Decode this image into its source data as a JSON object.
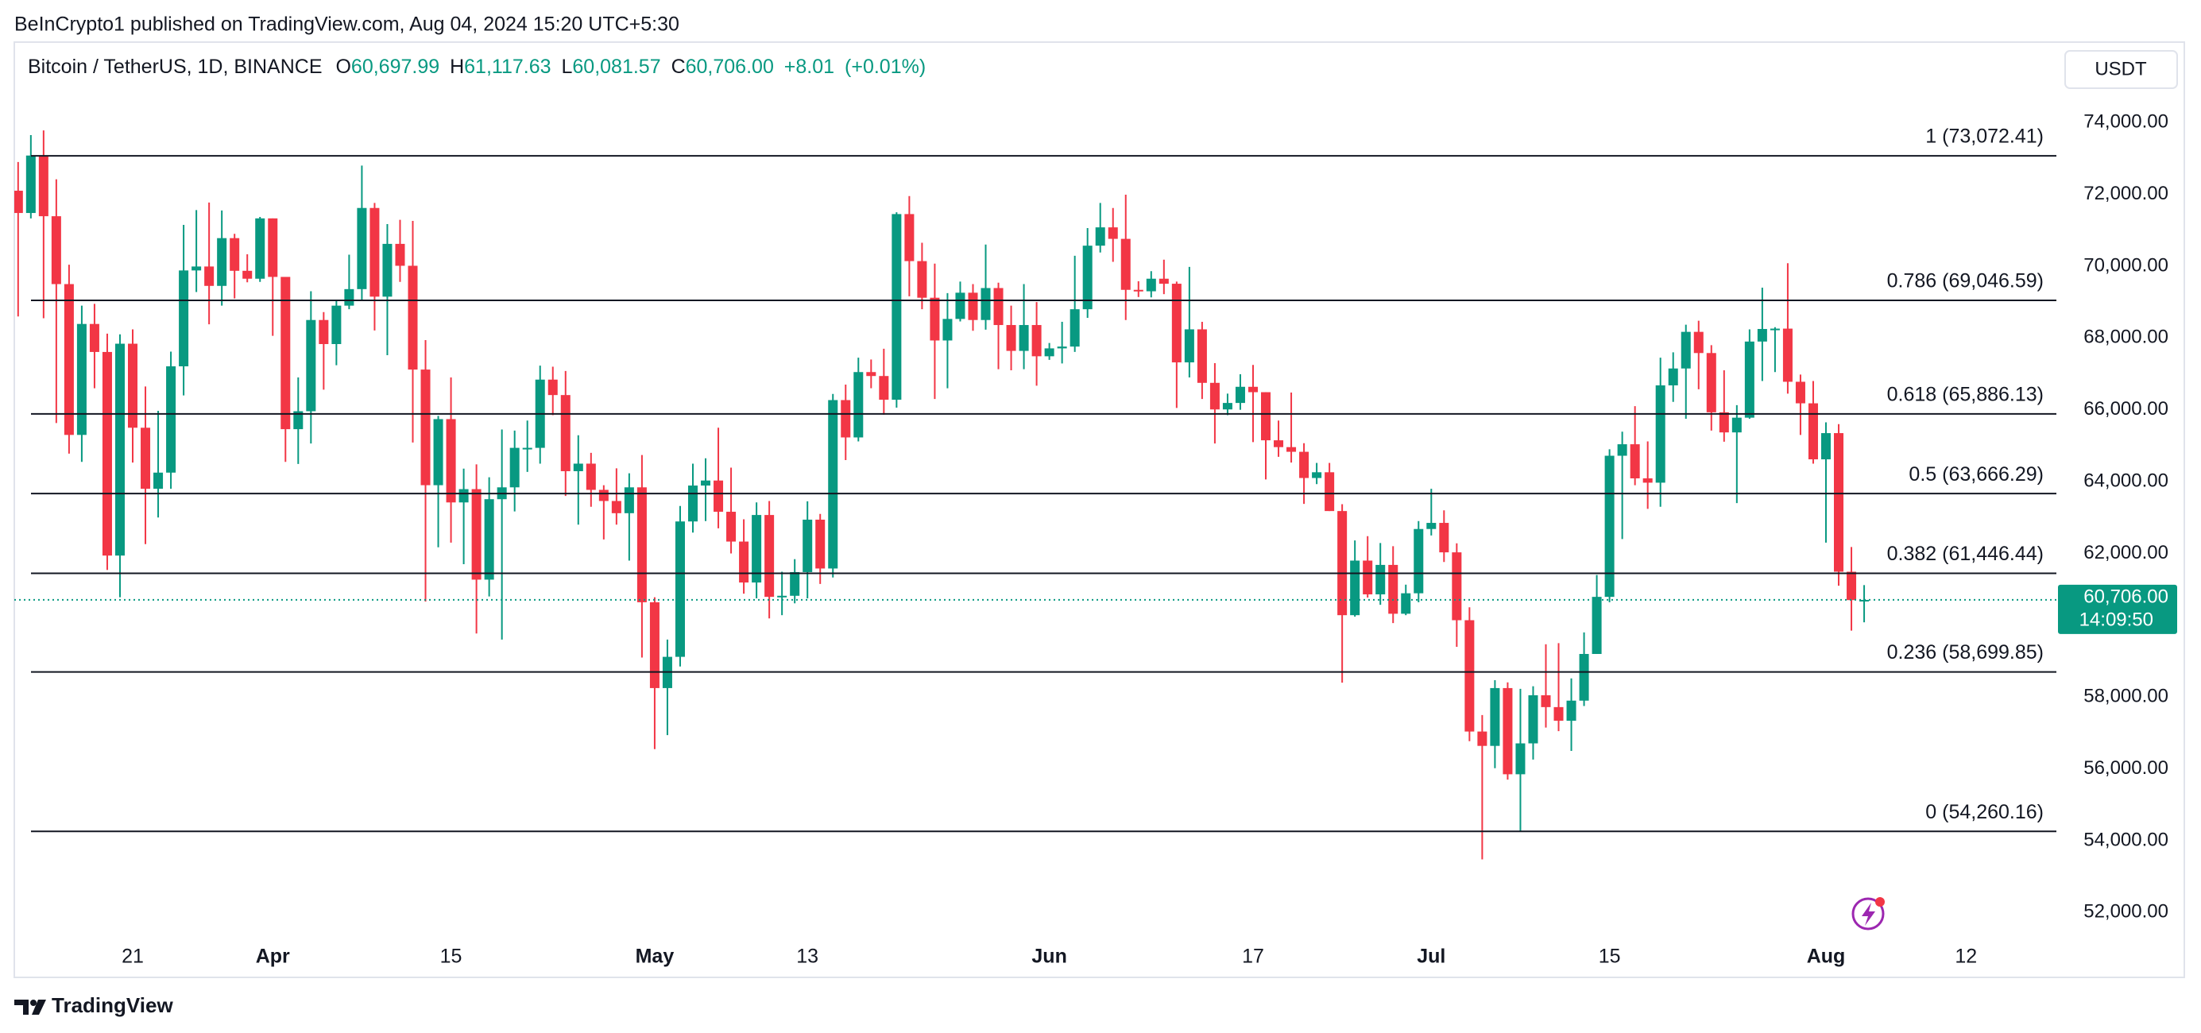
{
  "header": {
    "attribution": "BeInCrypto1 published on TradingView.com, Aug 04, 2024 15:20 UTC+5:30"
  },
  "toolbar": {
    "currency": "USDT"
  },
  "footer": {
    "brand": "TradingView"
  },
  "chart_data": {
    "type": "candlestick",
    "title": "Bitcoin / TetherUS, 1D, BINANCE",
    "legend": {
      "labels": [
        "O",
        "H",
        "L",
        "C"
      ],
      "values": [
        60697.99,
        61117.63,
        60081.57,
        60706
      ],
      "value_labels": [
        "60,697.99",
        "61,117.63",
        "60,081.57",
        "60,706.00"
      ],
      "change": {
        "value": 8.01,
        "label": "+8.01"
      },
      "change_pct": {
        "value": 0.01,
        "label": "(+0.01%)"
      }
    },
    "up_color": "#089981",
    "down_color": "#f23645",
    "open": [
      72100,
      71480,
      73080,
      71390,
      69500,
      65300,
      68390,
      67610,
      61940,
      67840,
      65500,
      63800,
      64250,
      67210,
      69880,
      69990,
      69450,
      70780,
      69870,
      69650,
      71330,
      69700,
      65460,
      65960,
      68500,
      67830,
      68900,
      69360,
      71620,
      69150,
      70620,
      70010,
      67120,
      63900,
      65740,
      63420,
      63790,
      61270,
      63510,
      63840,
      64940,
      64940,
      66840,
      66410,
      64290,
      64500,
      63770,
      63460,
      63120,
      63840,
      60640,
      58250,
      59120,
      62890,
      63890,
      64030,
      63160,
      62330,
      61190,
      63070,
      60790,
      60820,
      61480,
      62940,
      61580,
      66270,
      65230,
      67050,
      66940,
      66280,
      71450,
      70140,
      69120,
      67930,
      68530,
      69260,
      68500,
      69390,
      68360,
      67640,
      68360,
      67490,
      67710,
      67760,
      68800,
      70570,
      71080,
      70760,
      69340,
      69300,
      69650,
      69510,
      67320,
      68240,
      66750,
      66010,
      66190,
      66640,
      66490,
      65150,
      64960,
      64830,
      64100,
      64260,
      63180,
      60280,
      61800,
      60860,
      61680,
      60320,
      60890,
      62680,
      62850,
      62030,
      60140,
      57040,
      56640,
      58250,
      55850,
      56710,
      58050,
      57720,
      57340,
      57900,
      59200,
      60790,
      64720,
      65040,
      64090,
      63970,
      66680,
      67150,
      68170,
      67580,
      65930,
      65370,
      65780,
      67900,
      68250,
      68260,
      66780,
      66180,
      64620,
      65350,
      61490,
      60697.99
    ],
    "high": [
      72900,
      73650,
      73780,
      72420,
      70040,
      68900,
      68950,
      68120,
      68100,
      68240,
      66650,
      65970,
      67620,
      71150,
      71560,
      71770,
      71550,
      70900,
      70330,
      71370,
      71330,
      69700,
      66900,
      69300,
      68720,
      69030,
      70320,
      72800,
      71760,
      71170,
      71290,
      71260,
      67940,
      65830,
      66900,
      64360,
      64480,
      64120,
      65450,
      65420,
      65700,
      67230,
      67200,
      67080,
      65290,
      64800,
      63900,
      64370,
      64230,
      64740,
      60780,
      59600,
      63320,
      64500,
      64650,
      65500,
      64390,
      62950,
      63420,
      63460,
      61490,
      61840,
      63450,
      63100,
      66440,
      66700,
      67450,
      67400,
      67700,
      71500,
      71950,
      70650,
      70070,
      69250,
      69570,
      69500,
      70600,
      69540,
      68900,
      69500,
      69000,
      67860,
      68450,
      70290,
      71060,
      71760,
      71620,
      71990,
      69580,
      69860,
      70180,
      69570,
      69980,
      68450,
      67300,
      66450,
      66990,
      67250,
      66490,
      65700,
      66480,
      65070,
      64520,
      64520,
      63370,
      62360,
      62480,
      62290,
      62200,
      61130,
      62900,
      63800,
      63200,
      62280,
      60500,
      57500,
      58470,
      58410,
      58230,
      58300,
      59470,
      59500,
      58520,
      59800,
      61400,
      64900,
      65390,
      66100,
      65120,
      67450,
      67600,
      68370,
      68480,
      67800,
      67100,
      66130,
      68240,
      69400,
      68300,
      70080,
      66980,
      66800,
      65650,
      65600,
      62180,
      61117.63
    ],
    "low": [
      68600,
      71330,
      68550,
      65630,
      64780,
      64550,
      66600,
      61540,
      60780,
      64530,
      62260,
      63000,
      63800,
      66400,
      69280,
      68380,
      68900,
      69100,
      69550,
      69560,
      68060,
      64550,
      64490,
      65060,
      66560,
      67240,
      68800,
      69050,
      68210,
      67520,
      69560,
      65090,
      60660,
      62170,
      62300,
      61700,
      59770,
      60800,
      59600,
      63170,
      64270,
      64500,
      65850,
      63600,
      62800,
      63300,
      62390,
      62800,
      61800,
      59100,
      56550,
      56940,
      58850,
      62580,
      62900,
      62700,
      62000,
      60880,
      60750,
      60190,
      60280,
      60610,
      60750,
      61150,
      61330,
      64600,
      65120,
      66600,
      65860,
      66060,
      69160,
      68800,
      66300,
      66600,
      68460,
      68200,
      68230,
      67130,
      67100,
      67130,
      66670,
      67390,
      67290,
      67610,
      68560,
      70380,
      70120,
      68500,
      69140,
      69130,
      69220,
      66050,
      66900,
      66300,
      65060,
      65850,
      66000,
      65100,
      64060,
      64690,
      64530,
      63380,
      63930,
      63180,
      58400,
      60240,
      60770,
      60570,
      60060,
      60280,
      60640,
      62500,
      61760,
      59400,
      56770,
      53480,
      56020,
      55700,
      54260,
      56260,
      57150,
      57050,
      56500,
      57750,
      59200,
      60640,
      62400,
      63900,
      63240,
      63300,
      66220,
      65750,
      66570,
      65420,
      65110,
      63400,
      65750,
      66800,
      67050,
      66450,
      65300,
      64500,
      62300,
      61100,
      59850,
      60081.57
    ],
    "close": [
      71480,
      73080,
      71390,
      69500,
      65300,
      68390,
      67610,
      61940,
      67840,
      65500,
      63800,
      64250,
      67210,
      69880,
      69990,
      69450,
      70780,
      69870,
      69650,
      71330,
      69700,
      65460,
      65960,
      68500,
      67830,
      68900,
      69360,
      71620,
      69150,
      70620,
      70010,
      67120,
      63900,
      65740,
      63420,
      63790,
      61270,
      63510,
      63840,
      64940,
      64940,
      66840,
      66410,
      64290,
      64500,
      63770,
      63460,
      63120,
      63840,
      60640,
      58250,
      59120,
      62890,
      63890,
      64030,
      63160,
      62330,
      61190,
      63070,
      60790,
      60820,
      61480,
      62940,
      61580,
      66270,
      65230,
      67050,
      66940,
      66280,
      71450,
      70140,
      69120,
      67930,
      68530,
      69260,
      68500,
      69390,
      68360,
      67640,
      68360,
      67490,
      67710,
      67760,
      68800,
      70570,
      71080,
      70760,
      69340,
      69300,
      69650,
      69510,
      67320,
      68240,
      66750,
      66010,
      66190,
      66640,
      66490,
      65150,
      64960,
      64830,
      64100,
      64260,
      63180,
      60280,
      61800,
      60860,
      61680,
      60320,
      60890,
      62680,
      62850,
      62030,
      60140,
      57040,
      56640,
      58250,
      55850,
      56710,
      58050,
      57720,
      57340,
      57900,
      59200,
      60790,
      64720,
      65040,
      64090,
      63970,
      66680,
      67150,
      68170,
      67580,
      65930,
      65370,
      65780,
      67900,
      68250,
      68260,
      66780,
      66180,
      64620,
      65350,
      61490,
      60700,
      60706
    ],
    "xlim": [
      -0.3,
      160.1
    ],
    "xticks": [
      {
        "value": 9,
        "label": "21"
      },
      {
        "value": 20,
        "label": "Apr"
      },
      {
        "value": 34,
        "label": "15"
      },
      {
        "value": 50,
        "label": "May"
      },
      {
        "value": 62,
        "label": "13"
      },
      {
        "value": 81,
        "label": "Jun"
      },
      {
        "value": 97,
        "label": "17"
      },
      {
        "value": 111,
        "label": "Jul"
      },
      {
        "value": 125,
        "label": "15"
      },
      {
        "value": 142,
        "label": "Aug"
      },
      {
        "value": 153,
        "label": "12"
      }
    ],
    "ylim": [
      51300,
      76150
    ],
    "yticks": [
      {
        "value": 52000,
        "label": "52,000.00"
      },
      {
        "value": 54000,
        "label": "54,000.00"
      },
      {
        "value": 56000,
        "label": "56,000.00"
      },
      {
        "value": 58000,
        "label": "58,000.00"
      },
      {
        "value": 60000,
        "label": "60,000.00"
      },
      {
        "value": 62000,
        "label": "62,000.00"
      },
      {
        "value": 64000,
        "label": "64,000.00"
      },
      {
        "value": 66000,
        "label": "66,000.00"
      },
      {
        "value": 68000,
        "label": "68,000.00"
      },
      {
        "value": 70000,
        "label": "70,000.00"
      },
      {
        "value": 72000,
        "label": "72,000.00"
      },
      {
        "value": 74000,
        "label": "74,000.00"
      }
    ],
    "grid": false,
    "fib_levels": [
      {
        "value": 73072.41,
        "label": "1 (73,072.41)"
      },
      {
        "value": 69046.59,
        "label": "0.786 (69,046.59)"
      },
      {
        "value": 65886.13,
        "label": "0.618 (65,886.13)"
      },
      {
        "value": 63666.29,
        "label": "0.5 (63,666.29)"
      },
      {
        "value": 61446.44,
        "label": "0.382 (61,446.44)"
      },
      {
        "value": 58699.85,
        "label": "0.236 (58,699.85)"
      },
      {
        "value": 54260.16,
        "label": "0 (54,260.16)"
      }
    ],
    "last_price": {
      "value": 60706,
      "label": "60,706.00"
    },
    "countdown": "14:09:50"
  }
}
